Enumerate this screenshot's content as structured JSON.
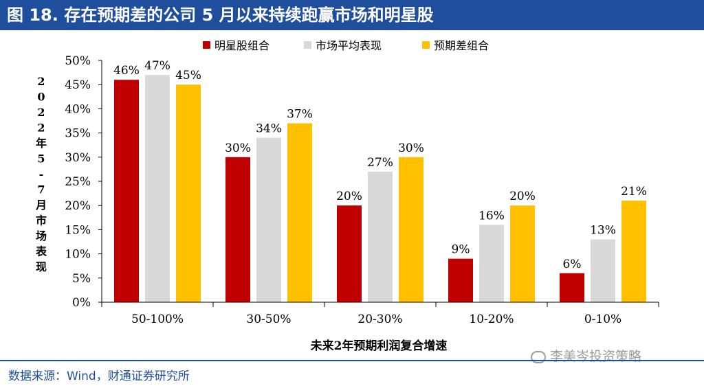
{
  "title": "图 18. 存在预期差的公司 5 月以来持续跑赢市场和明星股",
  "source": "数据来源：Wind，财通证券研究所",
  "watermark": "李美岑投资策略",
  "colors": {
    "title_bg": "#1f4e9c",
    "star": "#c00000",
    "market": "#d9d9d9",
    "expect": "#ffc000"
  },
  "chart_data": {
    "type": "bar",
    "categories": [
      "50-100%",
      "30-50%",
      "20-30%",
      "10-20%",
      "0-10%"
    ],
    "series": [
      {
        "name": "明星股组合",
        "values": [
          46,
          30,
          20,
          9,
          6
        ],
        "color": "#c00000"
      },
      {
        "name": "市场平均表现",
        "values": [
          47,
          34,
          27,
          16,
          13
        ],
        "color": "#d9d9d9"
      },
      {
        "name": "预期差组合",
        "values": [
          45,
          37,
          30,
          20,
          21
        ],
        "color": "#ffc000"
      }
    ],
    "ylim": [
      0,
      50
    ],
    "yticks": [
      "0%",
      "5%",
      "10%",
      "15%",
      "20%",
      "25%",
      "30%",
      "35%",
      "40%",
      "45%",
      "50%"
    ],
    "ylabel": "2022年5-7月市场表现",
    "xlabel": "未来2年预期利润复合增速",
    "legend": "top",
    "grid": false
  }
}
